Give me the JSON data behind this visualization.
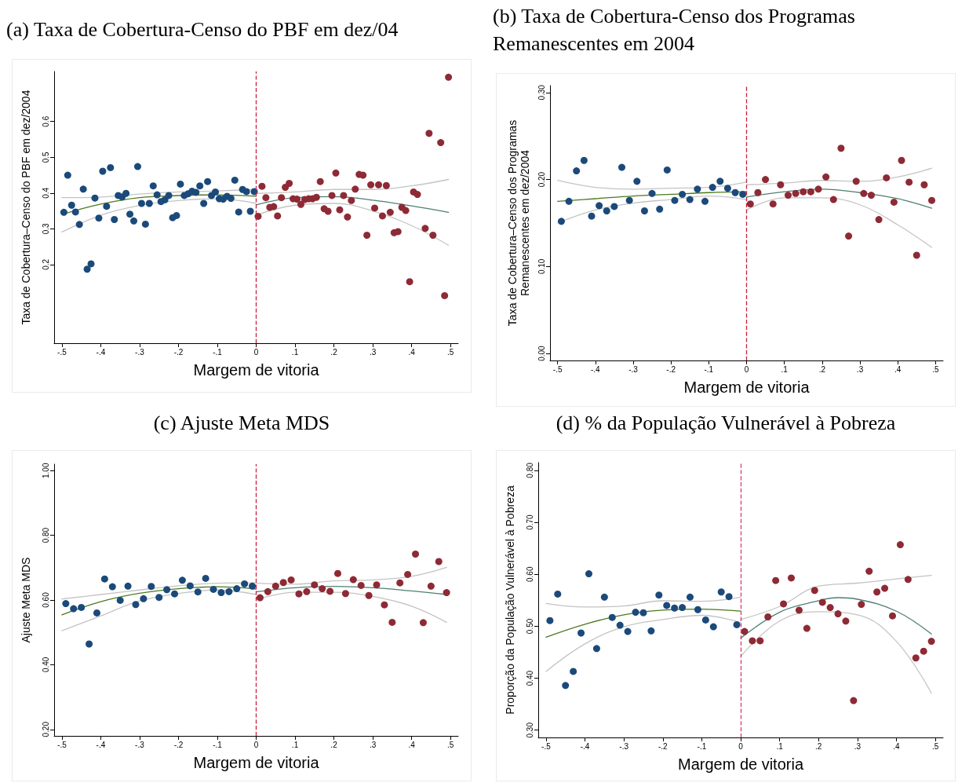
{
  "chart_data": [
    {
      "type": "scatter",
      "title": "(a) Taxa de Cobertura-Censo do PBF em dez/04",
      "xlabel": "Margem de vitoria",
      "ylabel": "Taxa de Cobertura–Censo do PBF em dez/2004",
      "xlim": [
        -0.52,
        0.52
      ],
      "ylim": [
        -0.02,
        0.74
      ],
      "xticks": [
        {
          "value": -0.5,
          "label": "-.5"
        },
        {
          "value": -0.4,
          "label": "-.4"
        },
        {
          "value": -0.3,
          "label": "-.3"
        },
        {
          "value": -0.2,
          "label": "-.2"
        },
        {
          "value": -0.1,
          "label": "-.1"
        },
        {
          "value": 0,
          "label": "0"
        },
        {
          "value": 0.1,
          "label": ".1"
        },
        {
          "value": 0.2,
          "label": ".2"
        },
        {
          "value": 0.3,
          "label": ".3"
        },
        {
          "value": 0.4,
          "label": ".4"
        },
        {
          "value": 0.5,
          "label": ".5"
        }
      ],
      "yticks": [
        0.2,
        0.3,
        0.4,
        0.5,
        0.6
      ],
      "grid": false,
      "ref_lines": [
        {
          "axis": "x",
          "value": 0,
          "label": null,
          "color": "#c8203c",
          "line_style": "dashed"
        }
      ],
      "series": [
        {
          "type": "scatter",
          "marker": "circle",
          "color": "#1b4a7a",
          "x": [
            -0.495,
            -0.485,
            -0.475,
            -0.465,
            -0.455,
            -0.445,
            -0.435,
            -0.425,
            -0.415,
            -0.405,
            -0.395,
            -0.385,
            -0.375,
            -0.365,
            -0.355,
            -0.345,
            -0.335,
            -0.325,
            -0.315,
            -0.305,
            -0.295,
            -0.285,
            -0.275,
            -0.265,
            -0.255,
            -0.245,
            -0.235,
            -0.225,
            -0.215,
            -0.205,
            -0.195,
            -0.185,
            -0.175,
            -0.165,
            -0.155,
            -0.145,
            -0.135,
            -0.125,
            -0.115,
            -0.105,
            -0.095,
            -0.085,
            -0.075,
            -0.065,
            -0.055,
            -0.045,
            -0.035,
            -0.025,
            -0.015,
            -0.005
          ],
          "values": [
            0.346,
            0.45,
            0.366,
            0.347,
            0.312,
            0.411,
            0.187,
            0.202,
            0.386,
            0.33,
            0.461,
            0.363,
            0.471,
            0.326,
            0.393,
            0.389,
            0.399,
            0.341,
            0.322,
            0.474,
            0.371,
            0.313,
            0.371,
            0.42,
            0.395,
            0.376,
            0.381,
            0.393,
            0.331,
            0.337,
            0.425,
            0.393,
            0.398,
            0.405,
            0.402,
            0.42,
            0.371,
            0.432,
            0.393,
            0.403,
            0.384,
            0.383,
            0.391,
            0.385,
            0.436,
            0.347,
            0.41,
            0.404,
            0.349,
            0.404
          ]
        },
        {
          "type": "scatter",
          "marker": "circle",
          "color": "#8e2a35",
          "x": [
            0.005,
            0.015,
            0.025,
            0.035,
            0.045,
            0.055,
            0.065,
            0.075,
            0.085,
            0.095,
            0.105,
            0.115,
            0.125,
            0.135,
            0.145,
            0.155,
            0.165,
            0.175,
            0.185,
            0.195,
            0.205,
            0.215,
            0.225,
            0.235,
            0.245,
            0.255,
            0.265,
            0.275,
            0.285,
            0.295,
            0.305,
            0.315,
            0.325,
            0.335,
            0.345,
            0.355,
            0.365,
            0.375,
            0.385,
            0.395,
            0.405,
            0.415,
            0.435,
            0.445,
            0.455,
            0.475,
            0.485,
            0.495
          ],
          "values": [
            0.335,
            0.419,
            0.387,
            0.36,
            0.362,
            0.336,
            0.387,
            0.416,
            0.427,
            0.384,
            0.383,
            0.368,
            0.382,
            0.384,
            0.384,
            0.388,
            0.432,
            0.356,
            0.349,
            0.393,
            0.456,
            0.353,
            0.393,
            0.333,
            0.379,
            0.411,
            0.452,
            0.45,
            0.282,
            0.423,
            0.358,
            0.423,
            0.336,
            0.421,
            0.346,
            0.289,
            0.292,
            0.36,
            0.351,
            0.152,
            0.403,
            0.396,
            0.301,
            0.567,
            0.282,
            0.541,
            0.113,
            0.724
          ]
        },
        {
          "type": "line",
          "marker": "none",
          "color": "#4b7a1e",
          "x": [
            -0.5,
            -0.4,
            -0.3,
            -0.2,
            -0.1,
            0
          ],
          "values": [
            0.34,
            0.369,
            0.387,
            0.393,
            0.395,
            0.391
          ]
        },
        {
          "type": "line",
          "marker": "none",
          "color": "#c4c4c4",
          "x": [
            -0.5,
            -0.4,
            -0.3,
            -0.2,
            -0.1,
            0
          ],
          "values": [
            0.387,
            0.389,
            0.397,
            0.403,
            0.406,
            0.41
          ]
        },
        {
          "type": "line",
          "marker": "none",
          "color": "#c4c4c4",
          "x": [
            -0.5,
            -0.4,
            -0.3,
            -0.2,
            -0.1,
            0
          ],
          "values": [
            0.291,
            0.338,
            0.365,
            0.379,
            0.384,
            0.371
          ]
        },
        {
          "type": "line",
          "marker": "none",
          "color": "#4f7f72",
          "x": [
            0,
            0.1,
            0.2,
            0.3,
            0.4,
            0.495
          ],
          "values": [
            0.367,
            0.387,
            0.39,
            0.38,
            0.364,
            0.346
          ]
        },
        {
          "type": "line",
          "marker": "none",
          "color": "#c4c4c4",
          "x": [
            0,
            0.1,
            0.2,
            0.3,
            0.4,
            0.495
          ],
          "values": [
            0.399,
            0.403,
            0.41,
            0.41,
            0.42,
            0.438
          ]
        },
        {
          "type": "line",
          "marker": "none",
          "color": "#c4c4c4",
          "x": [
            0,
            0.1,
            0.2,
            0.3,
            0.4,
            0.495
          ],
          "values": [
            0.338,
            0.366,
            0.371,
            0.35,
            0.309,
            0.254
          ]
        }
      ]
    },
    {
      "type": "scatter",
      "title": "(b) Taxa de Cobertura-Censo dos Programas Remanescentes em 2004",
      "xlabel": "Margem de vitoria",
      "ylabel": "Taxa de Cobertura–Censo dos Programas\nRemanescentes em dez/2004",
      "xlim": [
        -0.52,
        0.52
      ],
      "ylim": [
        -0.008,
        0.308
      ],
      "xticks": [
        {
          "value": -0.5,
          "label": "-.5"
        },
        {
          "value": -0.4,
          "label": "-.4"
        },
        {
          "value": -0.3,
          "label": "-.3"
        },
        {
          "value": -0.2,
          "label": "-.2"
        },
        {
          "value": -0.1,
          "label": "-.1"
        },
        {
          "value": 0,
          "label": "0"
        },
        {
          "value": 0.1,
          "label": ".1"
        },
        {
          "value": 0.2,
          "label": ".2"
        },
        {
          "value": 0.3,
          "label": ".3"
        },
        {
          "value": 0.4,
          "label": ".4"
        },
        {
          "value": 0.5,
          "label": ".5"
        }
      ],
      "yticks": [
        {
          "value": 0,
          "label": "0.00"
        },
        {
          "value": 0.1,
          "label": "0.10"
        },
        {
          "value": 0.2,
          "label": "0.20"
        },
        {
          "value": 0.3,
          "label": "0.30"
        }
      ],
      "grid": false,
      "ref_lines": [
        {
          "axis": "x",
          "value": 0,
          "label": null,
          "color": "#c8203c",
          "line_style": "dashed"
        }
      ],
      "series": [
        {
          "type": "scatter",
          "marker": "circle",
          "color": "#1b4a7a",
          "x": [
            -0.49,
            -0.47,
            -0.45,
            -0.43,
            -0.41,
            -0.39,
            -0.37,
            -0.35,
            -0.33,
            -0.31,
            -0.29,
            -0.27,
            -0.25,
            -0.23,
            -0.21,
            -0.19,
            -0.17,
            -0.15,
            -0.13,
            -0.11,
            -0.09,
            -0.07,
            -0.05,
            -0.03,
            -0.01
          ],
          "values": [
            0.152,
            0.175,
            0.21,
            0.222,
            0.158,
            0.17,
            0.164,
            0.169,
            0.214,
            0.176,
            0.198,
            0.164,
            0.184,
            0.166,
            0.211,
            0.176,
            0.183,
            0.177,
            0.189,
            0.175,
            0.191,
            0.198,
            0.19,
            0.185,
            0.183
          ]
        },
        {
          "type": "scatter",
          "marker": "circle",
          "color": "#8e2a35",
          "x": [
            0.01,
            0.03,
            0.05,
            0.07,
            0.09,
            0.11,
            0.13,
            0.15,
            0.17,
            0.19,
            0.21,
            0.23,
            0.25,
            0.27,
            0.29,
            0.31,
            0.33,
            0.35,
            0.37,
            0.39,
            0.41,
            0.43,
            0.45,
            0.47,
            0.49
          ],
          "values": [
            0.172,
            0.185,
            0.2,
            0.172,
            0.194,
            0.182,
            0.184,
            0.186,
            0.186,
            0.189,
            0.203,
            0.177,
            0.236,
            0.135,
            0.198,
            0.184,
            0.182,
            0.154,
            0.202,
            0.174,
            0.222,
            0.197,
            0.113,
            0.194,
            0.176
          ]
        },
        {
          "type": "line",
          "marker": "none",
          "color": "#4b7a1e",
          "x": [
            -0.5,
            -0.4,
            -0.3,
            -0.2,
            -0.1,
            0
          ],
          "values": [
            0.175,
            0.178,
            0.181,
            0.183,
            0.185,
            0.186
          ]
        },
        {
          "type": "line",
          "marker": "none",
          "color": "#c4c4c4",
          "x": [
            -0.5,
            -0.4,
            -0.3,
            -0.2,
            -0.1,
            0
          ],
          "values": [
            0.199,
            0.191,
            0.189,
            0.19,
            0.191,
            0.197
          ]
        },
        {
          "type": "line",
          "marker": "none",
          "color": "#c4c4c4",
          "x": [
            -0.5,
            -0.4,
            -0.3,
            -0.2,
            -0.1,
            0
          ],
          "values": [
            0.15,
            0.165,
            0.173,
            0.177,
            0.181,
            0.177
          ]
        },
        {
          "type": "line",
          "marker": "none",
          "color": "#4f7f72",
          "x": [
            0,
            0.1,
            0.2,
            0.3,
            0.4,
            0.49
          ],
          "values": [
            0.18,
            0.186,
            0.189,
            0.185,
            0.178,
            0.167
          ]
        },
        {
          "type": "line",
          "marker": "none",
          "color": "#c4c4c4",
          "x": [
            0,
            0.1,
            0.2,
            0.3,
            0.4,
            0.49
          ],
          "values": [
            0.194,
            0.196,
            0.199,
            0.198,
            0.203,
            0.213
          ]
        },
        {
          "type": "line",
          "marker": "none",
          "color": "#c4c4c4",
          "x": [
            0,
            0.1,
            0.2,
            0.3,
            0.4,
            0.49
          ],
          "values": [
            0.165,
            0.179,
            0.179,
            0.171,
            0.148,
            0.122
          ]
        }
      ]
    },
    {
      "type": "scatter",
      "title": "(c) Ajuste Meta MDS",
      "xlabel": "Margem de vitoria",
      "ylabel": "Ajuste Meta MDS",
      "xlim": [
        -0.52,
        0.52
      ],
      "ylim": [
        0.18,
        1.02
      ],
      "xticks": [
        {
          "value": -0.5,
          "label": "-.5"
        },
        {
          "value": -0.4,
          "label": "-.4"
        },
        {
          "value": -0.3,
          "label": "-.3"
        },
        {
          "value": -0.2,
          "label": "-.2"
        },
        {
          "value": -0.1,
          "label": "-.1"
        },
        {
          "value": 0,
          "label": "0"
        },
        {
          "value": 0.1,
          "label": ".1"
        },
        {
          "value": 0.2,
          "label": ".2"
        },
        {
          "value": 0.3,
          "label": ".3"
        },
        {
          "value": 0.4,
          "label": ".4"
        },
        {
          "value": 0.5,
          "label": ".5"
        }
      ],
      "yticks": [
        {
          "value": 0.2,
          "label": "0.20"
        },
        {
          "value": 0.4,
          "label": "0.40"
        },
        {
          "value": 0.6,
          "label": "0.60"
        },
        {
          "value": 0.8,
          "label": "0.80"
        },
        {
          "value": 1,
          "label": "1.00"
        }
      ],
      "grid": false,
      "ref_lines": [
        {
          "axis": "x",
          "value": 0,
          "label": null,
          "color": "#c8203c",
          "line_style": "dashed"
        }
      ],
      "series": [
        {
          "type": "scatter",
          "marker": "circle",
          "color": "#1b4a7a",
          "x": [
            -0.49,
            -0.47,
            -0.45,
            -0.43,
            -0.41,
            -0.39,
            -0.37,
            -0.35,
            -0.33,
            -0.31,
            -0.29,
            -0.27,
            -0.25,
            -0.23,
            -0.21,
            -0.19,
            -0.17,
            -0.15,
            -0.13,
            -0.11,
            -0.09,
            -0.07,
            -0.05,
            -0.03,
            -0.01
          ],
          "values": [
            0.589,
            0.573,
            0.577,
            0.464,
            0.56,
            0.665,
            0.641,
            0.599,
            0.643,
            0.586,
            0.604,
            0.642,
            0.608,
            0.632,
            0.619,
            0.661,
            0.644,
            0.625,
            0.667,
            0.633,
            0.623,
            0.626,
            0.635,
            0.65,
            0.643
          ]
        },
        {
          "type": "scatter",
          "marker": "circle",
          "color": "#8e2a35",
          "x": [
            0.01,
            0.03,
            0.05,
            0.07,
            0.09,
            0.11,
            0.13,
            0.15,
            0.17,
            0.19,
            0.21,
            0.23,
            0.25,
            0.27,
            0.29,
            0.31,
            0.33,
            0.35,
            0.37,
            0.39,
            0.41,
            0.43,
            0.45,
            0.47,
            0.49
          ],
          "values": [
            0.607,
            0.626,
            0.643,
            0.654,
            0.662,
            0.619,
            0.626,
            0.647,
            0.635,
            0.627,
            0.682,
            0.62,
            0.663,
            0.645,
            0.614,
            0.647,
            0.585,
            0.531,
            0.653,
            0.679,
            0.742,
            0.53,
            0.643,
            0.719,
            0.623
          ]
        },
        {
          "type": "line",
          "marker": "none",
          "color": "#4b7a1e",
          "x": [
            -0.5,
            -0.4,
            -0.3,
            -0.2,
            -0.1,
            0
          ],
          "values": [
            0.554,
            0.595,
            0.621,
            0.635,
            0.641,
            0.634
          ]
        },
        {
          "type": "line",
          "marker": "none",
          "color": "#c4c4c4",
          "x": [
            -0.5,
            -0.4,
            -0.3,
            -0.2,
            -0.1,
            0
          ],
          "values": [
            0.603,
            0.617,
            0.631,
            0.644,
            0.652,
            0.653
          ]
        },
        {
          "type": "line",
          "marker": "none",
          "color": "#c4c4c4",
          "x": [
            -0.5,
            -0.4,
            -0.3,
            -0.2,
            -0.1,
            0
          ],
          "values": [
            0.505,
            0.551,
            0.597,
            0.62,
            0.631,
            0.617
          ]
        },
        {
          "type": "line",
          "marker": "none",
          "color": "#4f7f72",
          "x": [
            0,
            0.1,
            0.2,
            0.3,
            0.4,
            0.49
          ],
          "values": [
            0.625,
            0.638,
            0.642,
            0.638,
            0.628,
            0.617
          ]
        },
        {
          "type": "line",
          "marker": "none",
          "color": "#c4c4c4",
          "x": [
            0,
            0.1,
            0.2,
            0.3,
            0.4,
            0.49
          ],
          "values": [
            0.652,
            0.649,
            0.659,
            0.662,
            0.673,
            0.701
          ]
        },
        {
          "type": "line",
          "marker": "none",
          "color": "#c4c4c4",
          "x": [
            0,
            0.1,
            0.2,
            0.3,
            0.4,
            0.49
          ],
          "values": [
            0.601,
            0.624,
            0.624,
            0.611,
            0.581,
            0.531
          ]
        }
      ]
    },
    {
      "type": "scatter",
      "title": "(d) % da População Vulnerável à Pobreza",
      "xlabel": "Margem de vitoria",
      "ylabel": "Proporção da População Vulnerável à Pobreza",
      "xlim": [
        -0.52,
        0.52
      ],
      "ylim": [
        0.286,
        0.815
      ],
      "xticks": [
        {
          "value": -0.5,
          "label": "-.5"
        },
        {
          "value": -0.4,
          "label": "-.4"
        },
        {
          "value": -0.3,
          "label": "-.3"
        },
        {
          "value": -0.2,
          "label": "-.2"
        },
        {
          "value": -0.1,
          "label": "-.1"
        },
        {
          "value": 0,
          "label": "0"
        },
        {
          "value": 0.1,
          "label": ".1"
        },
        {
          "value": 0.2,
          "label": ".2"
        },
        {
          "value": 0.3,
          "label": ".3"
        },
        {
          "value": 0.4,
          "label": ".4"
        },
        {
          "value": 0.5,
          "label": ".5"
        }
      ],
      "yticks": [
        {
          "value": 0.3,
          "label": "0.30"
        },
        {
          "value": 0.4,
          "label": "0.40"
        },
        {
          "value": 0.5,
          "label": "0.50"
        },
        {
          "value": 0.6,
          "label": "0.60"
        },
        {
          "value": 0.7,
          "label": "0.70"
        },
        {
          "value": 0.8,
          "label": "0.80"
        }
      ],
      "grid": false,
      "ref_lines": [
        {
          "axis": "x",
          "value": 0,
          "label": null,
          "color": "#dc3a6a",
          "line_style": "dashed"
        }
      ],
      "series": [
        {
          "type": "scatter",
          "marker": "circle",
          "color": "#1b4a7a",
          "x": [
            -0.49,
            -0.47,
            -0.45,
            -0.43,
            -0.41,
            -0.39,
            -0.37,
            -0.35,
            -0.33,
            -0.31,
            -0.29,
            -0.27,
            -0.25,
            -0.23,
            -0.21,
            -0.19,
            -0.17,
            -0.15,
            -0.13,
            -0.11,
            -0.09,
            -0.07,
            -0.05,
            -0.03,
            -0.01
          ],
          "values": [
            0.511,
            0.562,
            0.386,
            0.413,
            0.487,
            0.601,
            0.457,
            0.556,
            0.517,
            0.502,
            0.49,
            0.527,
            0.526,
            0.491,
            0.56,
            0.54,
            0.535,
            0.536,
            0.556,
            0.532,
            0.512,
            0.499,
            0.566,
            0.557,
            0.503
          ]
        },
        {
          "type": "scatter",
          "marker": "circle",
          "color": "#8e2a35",
          "x": [
            0.01,
            0.03,
            0.05,
            0.07,
            0.09,
            0.11,
            0.13,
            0.15,
            0.17,
            0.19,
            0.21,
            0.23,
            0.25,
            0.27,
            0.29,
            0.31,
            0.33,
            0.35,
            0.37,
            0.39,
            0.41,
            0.43,
            0.45,
            0.47,
            0.49
          ],
          "values": [
            0.49,
            0.472,
            0.472,
            0.518,
            0.588,
            0.543,
            0.593,
            0.531,
            0.496,
            0.569,
            0.546,
            0.536,
            0.524,
            0.51,
            0.357,
            0.542,
            0.606,
            0.566,
            0.573,
            0.52,
            0.657,
            0.59,
            0.439,
            0.452,
            0.471
          ]
        },
        {
          "type": "line",
          "marker": "none",
          "color": "#4b7a1e",
          "x": [
            -0.5,
            -0.4,
            -0.3,
            -0.2,
            -0.1,
            0
          ],
          "values": [
            0.479,
            0.504,
            0.522,
            0.531,
            0.533,
            0.529
          ]
        },
        {
          "type": "line",
          "marker": "none",
          "color": "#c4c4c4",
          "x": [
            -0.5,
            -0.4,
            -0.3,
            -0.2,
            -0.1,
            0
          ],
          "values": [
            0.544,
            0.537,
            0.539,
            0.549,
            0.548,
            0.556
          ]
        },
        {
          "type": "line",
          "marker": "none",
          "color": "#c4c4c4",
          "x": [
            -0.5,
            -0.4,
            -0.3,
            -0.2,
            -0.1,
            0
          ],
          "values": [
            0.413,
            0.466,
            0.499,
            0.513,
            0.521,
            0.507
          ]
        },
        {
          "type": "line",
          "marker": "none",
          "color": "#4f7f72",
          "x": [
            0,
            0.1,
            0.2,
            0.25,
            0.3,
            0.4,
            0.49
          ],
          "values": [
            0.477,
            0.527,
            0.549,
            0.555,
            0.552,
            0.529,
            0.485
          ]
        },
        {
          "type": "line",
          "marker": "none",
          "color": "#c4c4c4",
          "x": [
            0,
            0.1,
            0.2,
            0.3,
            0.4,
            0.49
          ],
          "values": [
            0.513,
            0.538,
            0.577,
            0.583,
            0.591,
            0.598
          ]
        },
        {
          "type": "line",
          "marker": "none",
          "color": "#c4c4c4",
          "x": [
            0,
            0.1,
            0.2,
            0.3,
            0.4,
            0.49
          ],
          "values": [
            0.442,
            0.51,
            0.528,
            0.522,
            0.471,
            0.371
          ]
        }
      ]
    }
  ]
}
